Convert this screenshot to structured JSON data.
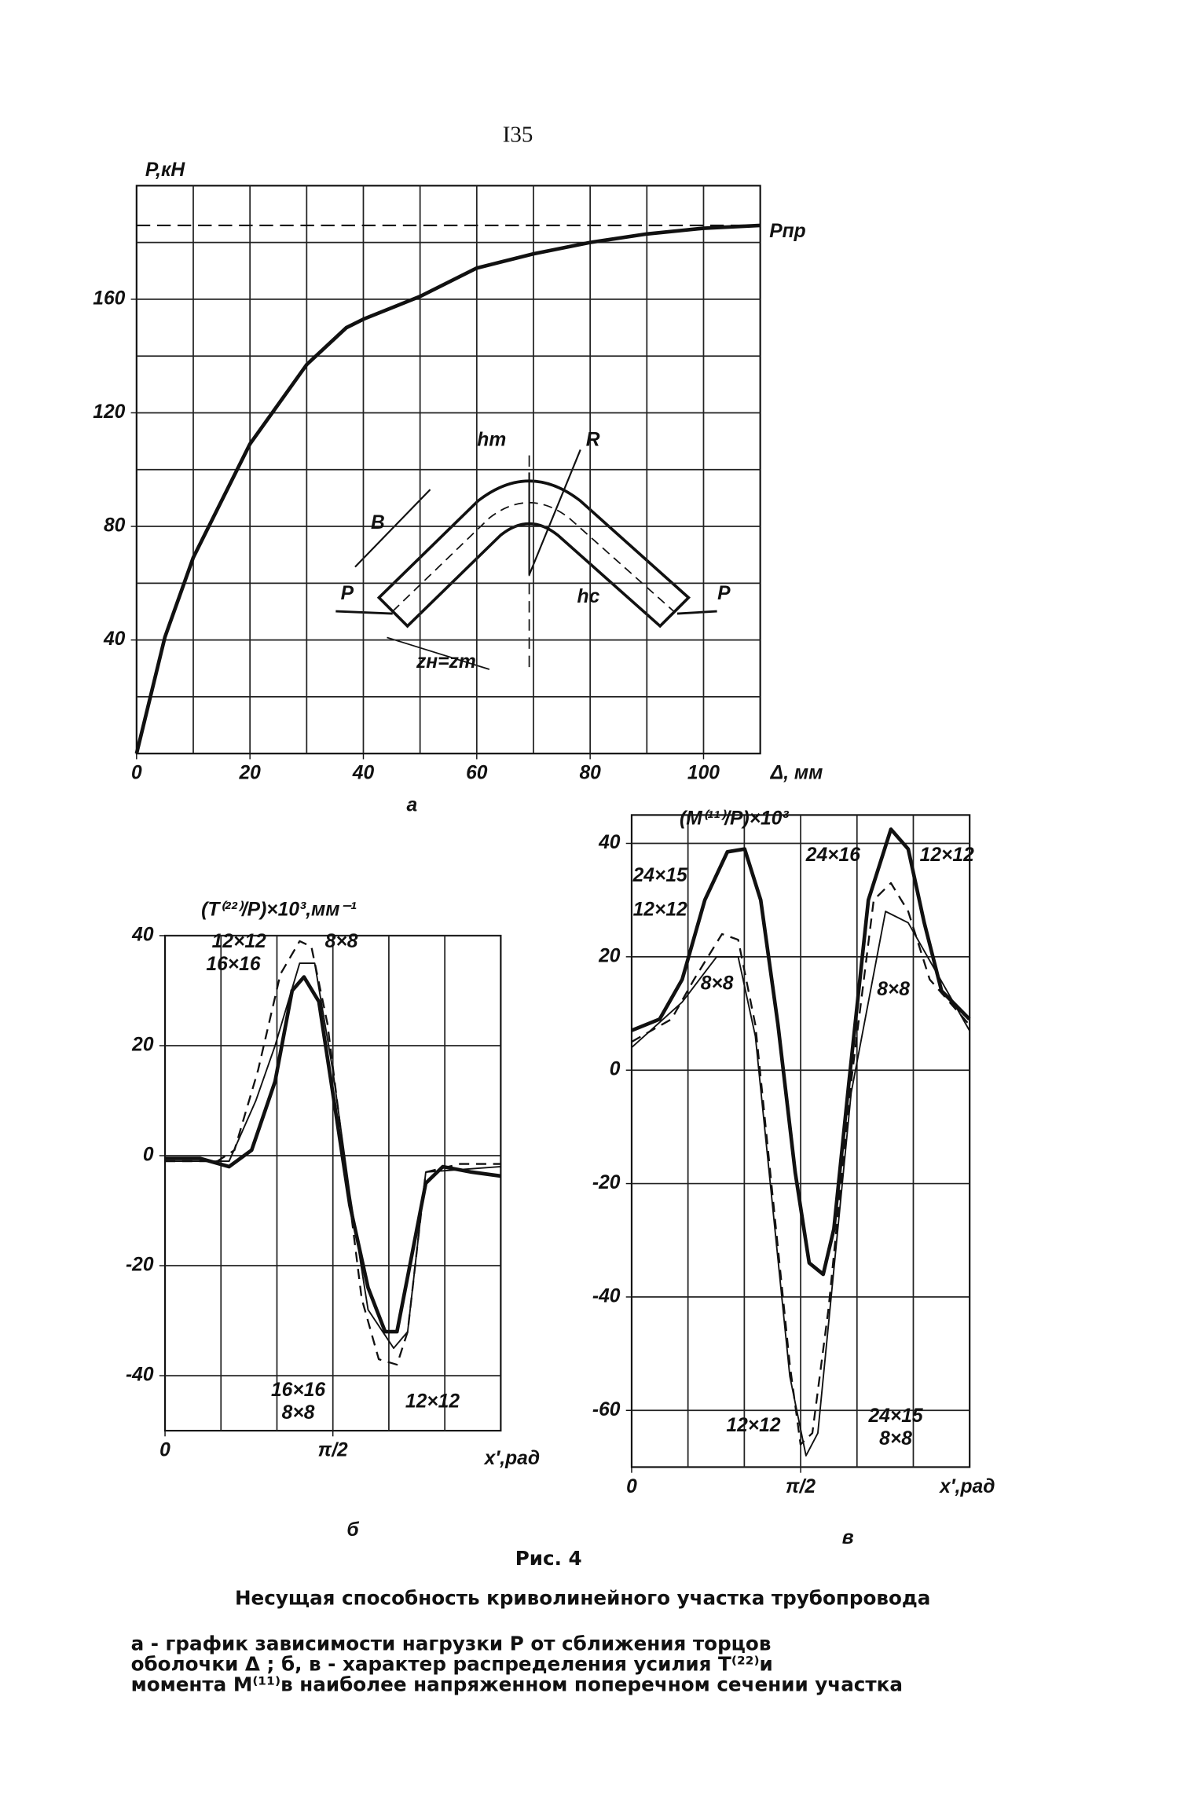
{
  "page_number": "I35",
  "chart_data": [
    {
      "type": "line",
      "subplot_label": "а",
      "ylabel": "P,кН",
      "xlabel": "Δ, мм",
      "xlim": [
        0,
        110
      ],
      "ylim": [
        0,
        200
      ],
      "xticks": [
        0,
        20,
        40,
        60,
        80,
        100
      ],
      "yticks": [
        40,
        80,
        120,
        160
      ],
      "xgrid": [
        10,
        20,
        30,
        40,
        50,
        60,
        70,
        80,
        90,
        100
      ],
      "ygrid": [
        20,
        40,
        60,
        80,
        100,
        120,
        140,
        160,
        180
      ],
      "reference_line": {
        "value": 186,
        "label": "Pпр"
      },
      "series": [
        {
          "color": "#111",
          "style": "solid",
          "x": [
            0,
            5,
            10,
            20,
            30,
            37,
            40,
            50,
            60,
            70,
            80,
            90,
            100,
            110
          ],
          "values": [
            0,
            41,
            69,
            109,
            137,
            150,
            153,
            161,
            171,
            176,
            180,
            183,
            185,
            186
          ]
        }
      ],
      "annotations": [
        "B",
        "hт",
        "R",
        "hс",
        "P",
        "P",
        "zн=zт"
      ]
    },
    {
      "type": "line",
      "subplot_label": "б",
      "title": "(T⁽²²⁾/P)×10³,мм⁻¹",
      "xlabel": "x′,рад",
      "xlim": [
        0,
        3.1416
      ],
      "ylim": [
        -50,
        40
      ],
      "xticks": [
        0,
        {
          "value": 1.5708,
          "label": "π/2"
        }
      ],
      "yticks": [
        -40,
        -20,
        0,
        20,
        40
      ],
      "xgrid": [
        0.5236,
        1.0472,
        1.5708,
        2.0944,
        2.618
      ],
      "ygrid": [
        -40,
        -20,
        0,
        20,
        40
      ],
      "series": [
        {
          "color": "#111",
          "style": "solid",
          "x": [
            0,
            0.33,
            0.6,
            0.81,
            1.03,
            1.19,
            1.3,
            1.44,
            1.57,
            1.73,
            1.9,
            2.06,
            2.17,
            2.27,
            2.44,
            2.6,
            2.87,
            3.14
          ],
          "values": [
            -0.5,
            -0.5,
            -2,
            1,
            13.5,
            30,
            32.5,
            28,
            11.4,
            -9,
            -24,
            -32,
            -32,
            -22,
            -5,
            -2,
            -3,
            -3.7
          ]
        },
        {
          "color": "#111",
          "style": "dashed",
          "x": [
            0,
            0.49,
            0.65,
            0.87,
            1.08,
            1.26,
            1.37,
            1.52,
            1.68,
            1.84,
            2.0,
            2.17,
            2.27,
            2.44,
            2.76,
            3.14
          ],
          "values": [
            -1,
            -1,
            1,
            15.5,
            33,
            39,
            38,
            24,
            -1,
            -26,
            -37,
            -38,
            -32,
            -3,
            -1.5,
            -1.5
          ]
        },
        {
          "color": "#111",
          "style": "thin",
          "x": [
            0,
            0.6,
            0.85,
            1.03,
            1.26,
            1.4,
            1.57,
            1.73,
            1.9,
            2.14,
            2.27,
            2.44,
            3.14
          ],
          "values": [
            -1,
            -1,
            10,
            20,
            35,
            35,
            15.5,
            -7,
            -28,
            -35,
            -32,
            -3,
            -2
          ]
        }
      ],
      "annotations": [
        "12×12",
        "16×16",
        "8×8",
        "16×16",
        "8×8",
        "12×12"
      ]
    },
    {
      "type": "line",
      "subplot_label": "в",
      "title": "(M⁽¹¹⁾/P)×10³",
      "xlabel": "x′,рад",
      "xlim": [
        0,
        3.1416
      ],
      "ylim": [
        -70,
        45
      ],
      "xticks": [
        0,
        {
          "value": 1.5708,
          "label": "π/2"
        }
      ],
      "yticks": [
        -60,
        -40,
        -20,
        0,
        20,
        40
      ],
      "xgrid": [
        0.5236,
        1.0472,
        1.5708,
        2.0944,
        2.618
      ],
      "ygrid": [
        -60,
        -40,
        -20,
        0,
        20,
        40
      ],
      "series": [
        {
          "color": "#111",
          "style": "solid",
          "x": [
            0,
            0.26,
            0.47,
            0.68,
            0.89,
            1.05,
            1.2,
            1.36,
            1.52,
            1.65,
            1.78,
            1.88,
            2.02,
            2.2,
            2.41,
            2.57,
            2.72,
            2.88,
            3.14
          ],
          "values": [
            7,
            9,
            16,
            30,
            38.5,
            39,
            30,
            8,
            -18,
            -34,
            -36,
            -28,
            -2,
            30,
            42.5,
            39,
            26,
            14,
            9
          ]
        },
        {
          "color": "#111",
          "style": "dashed",
          "x": [
            0,
            0.37,
            0.58,
            0.84,
            0.99,
            1.15,
            1.31,
            1.47,
            1.57,
            1.68,
            1.83,
            2.04,
            2.25,
            2.41,
            2.57,
            2.77,
            3.14
          ],
          "values": [
            5,
            9,
            16,
            24,
            23,
            8,
            -22,
            -52,
            -66,
            -64,
            -42,
            -2,
            30,
            33,
            28,
            16,
            8
          ]
        },
        {
          "color": "#111",
          "style": "thin",
          "x": [
            0,
            0.47,
            0.79,
            0.99,
            1.15,
            1.47,
            1.62,
            1.73,
            2.04,
            2.36,
            2.57,
            3.14
          ],
          "values": [
            4,
            12,
            20,
            20,
            6,
            -54,
            -68,
            -64,
            -4,
            28,
            26,
            7
          ]
        }
      ],
      "annotations": [
        "24×15",
        "12×12",
        "8×8",
        "24×16",
        "12×12",
        "8×8",
        "12×12",
        "24×15",
        "8×8"
      ]
    }
  ],
  "figure_label": "Рис. 4",
  "figure_title": "Несущая способность криволинейного участка трубопровода",
  "caption": [
    "а - график зависимости нагрузки P от сближения торцов",
    "оболочки Δ ; б, в - характер распределения усилия T⁽²²⁾и",
    "момента M⁽¹¹⁾в наиболее напряженном поперечном сечении участка"
  ]
}
